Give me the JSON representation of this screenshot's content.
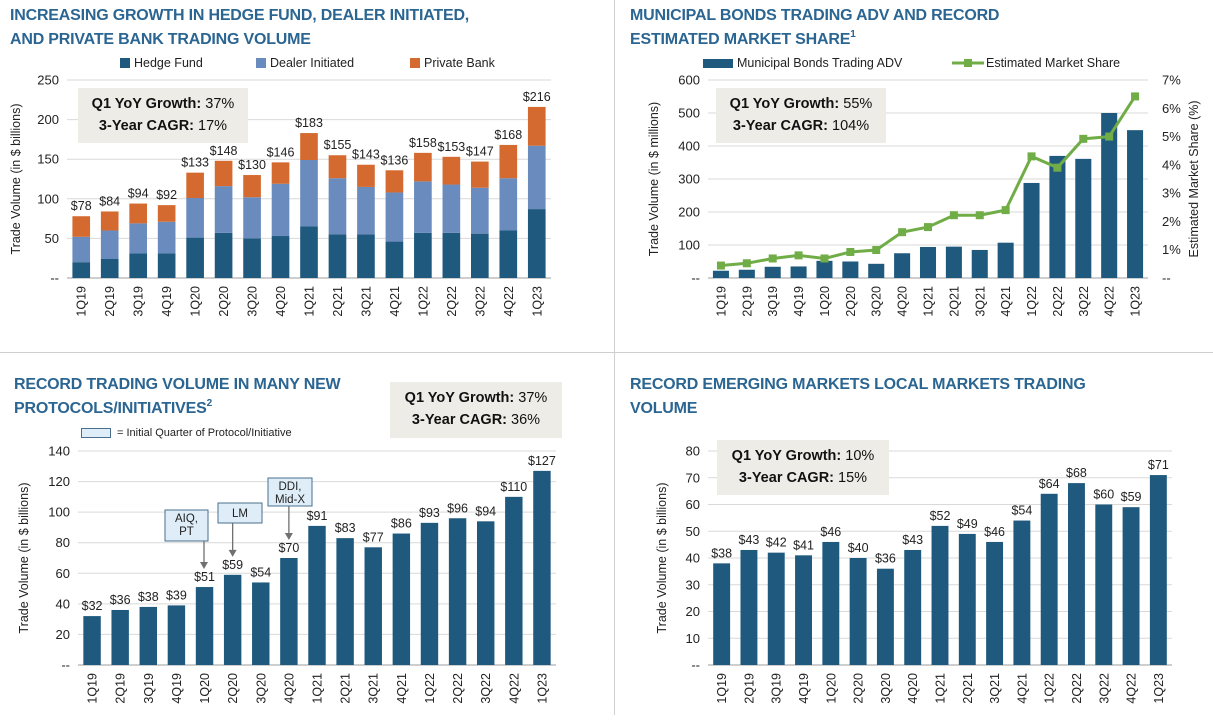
{
  "colors": {
    "title": "#2b6592",
    "navy": "#1f5a7e",
    "dealer": "#6a8bbd",
    "private": "#d46a2f",
    "share": "#70ad47",
    "statbox": "#eeece7",
    "annotation_fill": "#deedf7"
  },
  "panels": [
    {
      "title_line1": "INCREASING GROWTH IN HEDGE FUND, DEALER INITIATED,",
      "title_line2": "AND PRIVATE BANK TRADING VOLUME",
      "stat_label1": "Q1 YoY Growth:",
      "stat_value1": "37%",
      "stat_label2": "3-Year CAGR:",
      "stat_value2": "17%"
    },
    {
      "title_line1": "MUNICIPAL BONDS TRADING ADV AND RECORD",
      "title_line2": "ESTIMATED MARKET SHARE",
      "footnote": "1",
      "stat_label1": "Q1 YoY Growth:",
      "stat_value1": "55%",
      "stat_label2": "3-Year CAGR:",
      "stat_value2": "104%"
    },
    {
      "title_line1": "RECORD TRADING VOLUME IN MANY NEW",
      "title_line2": "PROTOCOLS/INITIATIVES",
      "footnote": "2",
      "stat_label1": "Q1 YoY Growth:",
      "stat_value1": "37%",
      "stat_label2": "3-Year CAGR:",
      "stat_value2": "36%",
      "legend_note": "= Initial Quarter of Protocol/Initiative"
    },
    {
      "title_line1": "RECORD EMERGING MARKETS LOCAL MARKETS TRADING",
      "title_line2": "VOLUME",
      "stat_label1": "Q1 YoY Growth:",
      "stat_value1": "10%",
      "stat_label2": "3-Year CAGR:",
      "stat_value2": "15%"
    }
  ],
  "chart_data": [
    {
      "type": "bar",
      "stacked": true,
      "categories": [
        "1Q19",
        "2Q19",
        "3Q19",
        "4Q19",
        "1Q20",
        "2Q20",
        "3Q20",
        "4Q20",
        "1Q21",
        "2Q21",
        "3Q21",
        "4Q21",
        "1Q22",
        "2Q22",
        "3Q22",
        "4Q22",
        "1Q23"
      ],
      "series": [
        {
          "name": "Hedge Fund",
          "color": "#1f5a7e",
          "values": [
            20,
            24,
            31,
            31,
            51,
            57,
            50,
            53,
            65,
            55,
            55,
            46,
            57,
            57,
            56,
            60,
            87
          ]
        },
        {
          "name": "Dealer Initiated",
          "color": "#6a8bbd",
          "values": [
            32,
            36,
            38,
            40,
            50,
            59,
            52,
            66,
            84,
            71,
            60,
            62,
            65,
            61,
            58,
            66,
            80
          ]
        },
        {
          "name": "Private Bank",
          "color": "#d46a2f",
          "values": [
            26,
            24,
            25,
            21,
            32,
            32,
            28,
            27,
            34,
            29,
            28,
            28,
            36,
            35,
            33,
            42,
            49
          ]
        }
      ],
      "data_labels": [
        "$78",
        "$84",
        "$94",
        "$92",
        "$133",
        "$148",
        "$130",
        "$146",
        "$183",
        "$155",
        "$143",
        "$136",
        "$158",
        "$153",
        "$147",
        "$168",
        "$216"
      ],
      "ylabel": "Trade Volume (in $ billions)",
      "ylim": [
        0,
        250
      ],
      "y_ticks": [
        "--",
        "50",
        "100",
        "150",
        "200",
        "250"
      ],
      "grid": true,
      "legend": "top"
    },
    {
      "type": "bar+line",
      "categories": [
        "1Q19",
        "2Q19",
        "3Q19",
        "4Q19",
        "1Q20",
        "2Q20",
        "3Q20",
        "4Q20",
        "1Q21",
        "2Q21",
        "3Q21",
        "4Q21",
        "1Q22",
        "2Q22",
        "3Q22",
        "4Q22",
        "1Q23"
      ],
      "series": [
        {
          "name": "Municipal Bonds Trading ADV",
          "type": "bar",
          "axis": "left",
          "color": "#1f5a7e",
          "values": [
            22,
            25,
            34,
            35,
            52,
            50,
            43,
            75,
            94,
            95,
            85,
            107,
            288,
            370,
            361,
            500,
            448
          ]
        },
        {
          "name": "Estimated Market Share",
          "type": "line",
          "axis": "right",
          "color": "#70ad47",
          "values": [
            0.44,
            0.52,
            0.69,
            0.8,
            0.69,
            0.92,
            0.99,
            1.62,
            1.8,
            2.22,
            2.22,
            2.4,
            4.3,
            3.9,
            4.92,
            5.0,
            6.42
          ]
        }
      ],
      "ylabel": "Trade Volume (in $ millions)",
      "ylabel_right": "Estimated Market Share (%)",
      "ylim": [
        0,
        600
      ],
      "ylim_right": [
        0,
        7
      ],
      "y_ticks": [
        "--",
        "100",
        "200",
        "300",
        "400",
        "500",
        "600"
      ],
      "y_ticks_right": [
        "--",
        "1%",
        "2%",
        "3%",
        "4%",
        "5%",
        "6%",
        "7%"
      ],
      "grid": true,
      "legend": "top"
    },
    {
      "type": "bar",
      "categories": [
        "1Q19",
        "2Q19",
        "3Q19",
        "4Q19",
        "1Q20",
        "2Q20",
        "3Q20",
        "4Q20",
        "1Q21",
        "2Q21",
        "3Q21",
        "4Q21",
        "1Q22",
        "2Q22",
        "3Q22",
        "4Q22",
        "1Q23"
      ],
      "values": [
        32,
        36,
        38,
        39,
        51,
        59,
        54,
        70,
        91,
        83,
        77,
        86,
        93,
        96,
        94,
        110,
        127
      ],
      "data_labels": [
        "$32",
        "$36",
        "$38",
        "$39",
        "$51",
        "$59",
        "$54",
        "$70",
        "$91",
        "$83",
        "$77",
        "$86",
        "$93",
        "$96",
        "$94",
        "$110",
        "$127"
      ],
      "annotations": [
        {
          "category": "1Q20",
          "lines": [
            "AIQ,",
            "PT"
          ]
        },
        {
          "category": "2Q20",
          "lines": [
            "LM"
          ]
        },
        {
          "category": "4Q20",
          "lines": [
            "DDI,",
            "Mid-X"
          ]
        }
      ],
      "ylabel": "Trade Volume (in $ billions)",
      "ylim": [
        0,
        140
      ],
      "y_ticks": [
        "--",
        "20",
        "40",
        "60",
        "80",
        "100",
        "120",
        "140"
      ],
      "grid": true
    },
    {
      "type": "bar",
      "categories": [
        "1Q19",
        "2Q19",
        "3Q19",
        "4Q19",
        "1Q20",
        "2Q20",
        "3Q20",
        "4Q20",
        "1Q21",
        "2Q21",
        "3Q21",
        "4Q21",
        "1Q22",
        "2Q22",
        "3Q22",
        "4Q22",
        "1Q23"
      ],
      "values": [
        38,
        43,
        42,
        41,
        46,
        40,
        36,
        43,
        52,
        49,
        46,
        54,
        64,
        68,
        60,
        59,
        71
      ],
      "data_labels": [
        "$38",
        "$43",
        "$42",
        "$41",
        "$46",
        "$40",
        "$36",
        "$43",
        "$52",
        "$49",
        "$46",
        "$54",
        "$64",
        "$68",
        "$60",
        "$59",
        "$71"
      ],
      "ylabel": "Trade Volume (in $ billions)",
      "ylim": [
        0,
        80
      ],
      "y_ticks": [
        "--",
        "10",
        "20",
        "30",
        "40",
        "50",
        "60",
        "70",
        "80"
      ],
      "grid": true
    }
  ]
}
